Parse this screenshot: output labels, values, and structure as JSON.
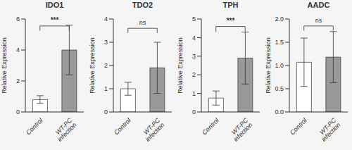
{
  "chart_data": [
    {
      "type": "bar",
      "title": "IDO1",
      "y_label": "Relative Expression",
      "categories": [
        "Control",
        "WT-PC infection"
      ],
      "values": [
        0.8,
        4.0
      ],
      "errors": [
        0.25,
        1.6
      ],
      "colors": [
        "white",
        "#999999"
      ],
      "ylim": [
        0,
        6
      ],
      "yticks": [
        0,
        2,
        4,
        6
      ],
      "grid": false,
      "significance": {
        "label": "***",
        "y": 5.55,
        "y_line": 5.25
      }
    },
    {
      "type": "bar",
      "title": "TDO2",
      "y_label": "Relative Expression",
      "categories": [
        "Control",
        "WT-PC infection"
      ],
      "values": [
        1.0,
        1.9
      ],
      "errors": [
        0.28,
        1.1
      ],
      "colors": [
        "white",
        "#999999"
      ],
      "ylim": [
        0,
        4
      ],
      "yticks": [
        0,
        1,
        2,
        3,
        4
      ],
      "grid": false,
      "significance": {
        "label": "ns",
        "y": 3.6,
        "y_line": 3.4
      }
    },
    {
      "type": "bar",
      "title": "TPH",
      "y_label": "Relative Expression",
      "categories": [
        "Control",
        "WT-PC infection"
      ],
      "values": [
        0.75,
        2.9
      ],
      "errors": [
        0.38,
        1.4
      ],
      "colors": [
        "white",
        "#999999"
      ],
      "ylim": [
        0,
        5
      ],
      "yticks": [
        0,
        1,
        2,
        3,
        4,
        5
      ],
      "grid": false,
      "significance": {
        "label": "***",
        "y": 4.6,
        "y_line": 4.3
      }
    },
    {
      "type": "bar",
      "title": "AADC",
      "y_label": "Relative Expression",
      "categories": [
        "Control",
        "WT-PC infection"
      ],
      "values": [
        1.07,
        1.18
      ],
      "errors": [
        0.52,
        0.55
      ],
      "colors": [
        "white",
        "#999999"
      ],
      "ylim": [
        0,
        2
      ],
      "yticks": [
        {
          "value": 0,
          "label": "0.0"
        },
        0.5,
        {
          "value": 1,
          "label": "1.0"
        },
        1.5,
        {
          "value": 2,
          "label": "2.0"
        }
      ],
      "grid": false,
      "significance": {
        "label": "ns",
        "y": 1.85,
        "y_line": 1.75
      }
    }
  ]
}
